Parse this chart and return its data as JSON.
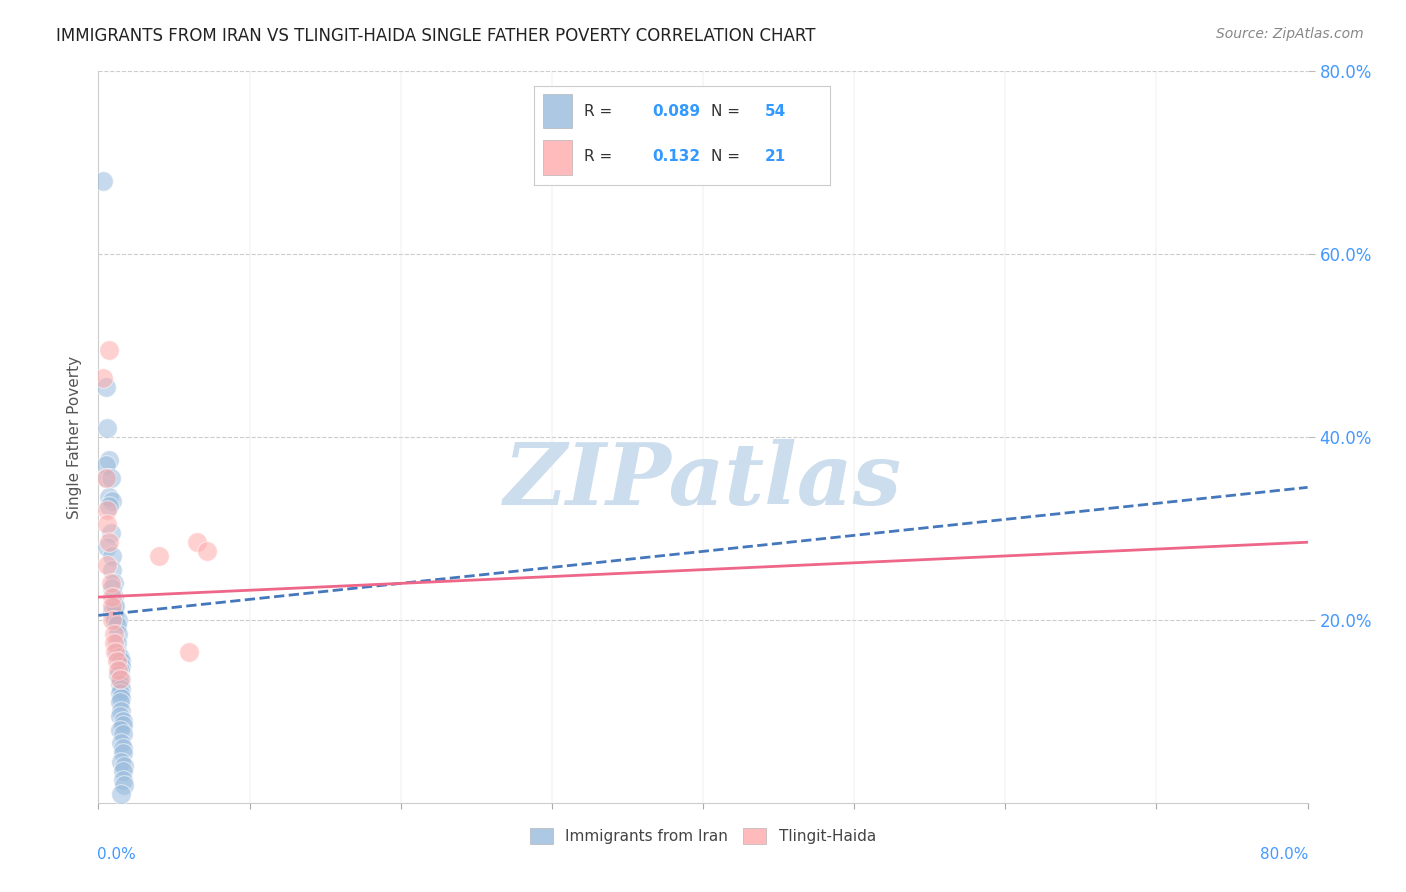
{
  "title": "IMMIGRANTS FROM IRAN VS TLINGIT-HAIDA SINGLE FATHER POVERTY CORRELATION CHART",
  "source": "Source: ZipAtlas.com",
  "ylabel": "Single Father Poverty",
  "legend1_label": "Immigrants from Iran",
  "legend2_label": "Tlingit-Haida",
  "R1": 0.089,
  "N1": 54,
  "R2": 0.132,
  "N2": 21,
  "xlim": [
    0.0,
    0.8
  ],
  "ylim": [
    0.0,
    0.8
  ],
  "blue_color": "#99BBDD",
  "pink_color": "#FFAAAA",
  "trendline_blue_color": "#4477BB",
  "trendline_pink_color": "#EE6688",
  "watermark_text": "ZIPatlas",
  "watermark_color": "#CCDDED",
  "trendline_blue": [
    0.0,
    0.205,
    0.8,
    0.345
  ],
  "trendline_pink": [
    0.0,
    0.225,
    0.8,
    0.285
  ],
  "blue_scatter": [
    [
      0.003,
      0.68
    ],
    [
      0.005,
      0.455
    ],
    [
      0.006,
      0.41
    ],
    [
      0.007,
      0.375
    ],
    [
      0.005,
      0.37
    ],
    [
      0.006,
      0.355
    ],
    [
      0.008,
      0.355
    ],
    [
      0.007,
      0.335
    ],
    [
      0.009,
      0.33
    ],
    [
      0.007,
      0.325
    ],
    [
      0.008,
      0.295
    ],
    [
      0.006,
      0.28
    ],
    [
      0.009,
      0.27
    ],
    [
      0.009,
      0.255
    ],
    [
      0.01,
      0.24
    ],
    [
      0.009,
      0.235
    ],
    [
      0.01,
      0.225
    ],
    [
      0.01,
      0.215
    ],
    [
      0.009,
      0.21
    ],
    [
      0.01,
      0.205
    ],
    [
      0.011,
      0.215
    ],
    [
      0.011,
      0.2
    ],
    [
      0.013,
      0.2
    ],
    [
      0.012,
      0.195
    ],
    [
      0.013,
      0.185
    ],
    [
      0.012,
      0.175
    ],
    [
      0.012,
      0.165
    ],
    [
      0.013,
      0.16
    ],
    [
      0.014,
      0.16
    ],
    [
      0.015,
      0.155
    ],
    [
      0.015,
      0.15
    ],
    [
      0.014,
      0.145
    ],
    [
      0.013,
      0.14
    ],
    [
      0.015,
      0.135
    ],
    [
      0.014,
      0.13
    ],
    [
      0.015,
      0.125
    ],
    [
      0.014,
      0.12
    ],
    [
      0.015,
      0.115
    ],
    [
      0.014,
      0.11
    ],
    [
      0.015,
      0.1
    ],
    [
      0.014,
      0.095
    ],
    [
      0.016,
      0.09
    ],
    [
      0.016,
      0.085
    ],
    [
      0.014,
      0.08
    ],
    [
      0.016,
      0.075
    ],
    [
      0.015,
      0.065
    ],
    [
      0.016,
      0.06
    ],
    [
      0.016,
      0.055
    ],
    [
      0.015,
      0.045
    ],
    [
      0.017,
      0.04
    ],
    [
      0.016,
      0.035
    ],
    [
      0.016,
      0.025
    ],
    [
      0.017,
      0.02
    ],
    [
      0.015,
      0.01
    ]
  ],
  "pink_scatter": [
    [
      0.003,
      0.465
    ],
    [
      0.007,
      0.495
    ],
    [
      0.005,
      0.355
    ],
    [
      0.006,
      0.32
    ],
    [
      0.006,
      0.305
    ],
    [
      0.007,
      0.285
    ],
    [
      0.006,
      0.26
    ],
    [
      0.008,
      0.24
    ],
    [
      0.009,
      0.225
    ],
    [
      0.009,
      0.215
    ],
    [
      0.009,
      0.2
    ],
    [
      0.01,
      0.185
    ],
    [
      0.01,
      0.175
    ],
    [
      0.011,
      0.165
    ],
    [
      0.012,
      0.155
    ],
    [
      0.013,
      0.145
    ],
    [
      0.014,
      0.135
    ],
    [
      0.04,
      0.27
    ],
    [
      0.06,
      0.165
    ],
    [
      0.065,
      0.285
    ],
    [
      0.072,
      0.275
    ]
  ]
}
